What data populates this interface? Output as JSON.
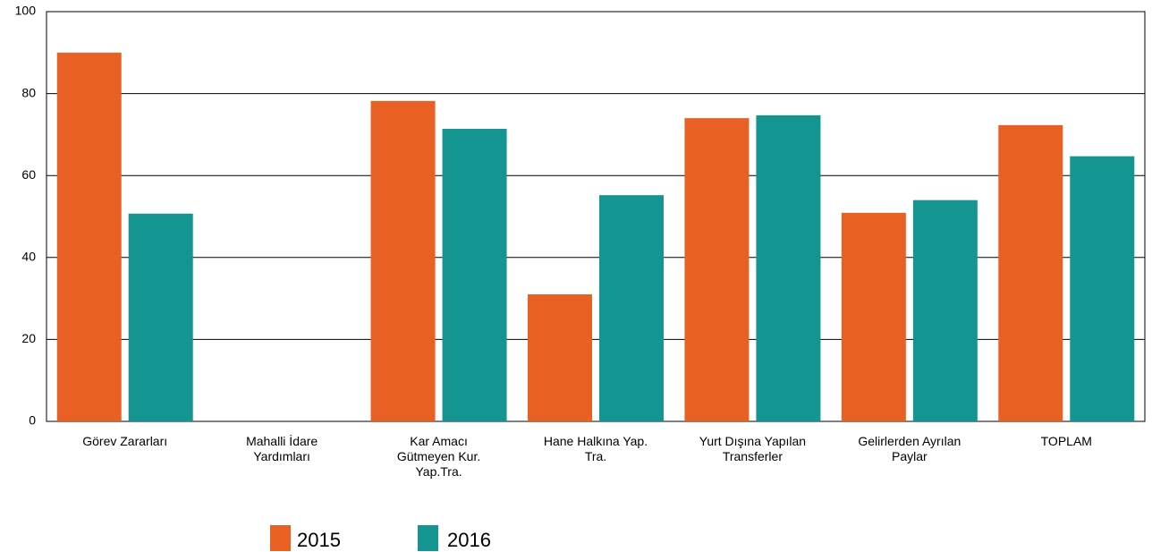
{
  "chart_data": {
    "type": "bar",
    "categories": [
      "Görev Zararları",
      "Mahalli İdare\nYardımları",
      "Kar Amacı\nGütmeyen Kur.\nYap.Tra.",
      "Hane Halkına Yap.\nTra.",
      "Yurt Dışına Yapılan\nTransferler",
      "Gelirlerden Ayrılan\nPaylar",
      "TOPLAM"
    ],
    "series": [
      {
        "name": "2015",
        "color": "#e86024",
        "values": [
          90,
          0,
          78.2,
          31,
          74,
          50.9,
          72.3
        ]
      },
      {
        "name": "2016",
        "color": "#159591",
        "values": [
          50.7,
          0,
          71.4,
          55.2,
          74.7,
          54,
          64.7
        ]
      }
    ],
    "ylim": [
      0,
      100
    ],
    "yticks": [
      0,
      20,
      40,
      60,
      80,
      100
    ],
    "grid": true,
    "legend": "bottom"
  }
}
